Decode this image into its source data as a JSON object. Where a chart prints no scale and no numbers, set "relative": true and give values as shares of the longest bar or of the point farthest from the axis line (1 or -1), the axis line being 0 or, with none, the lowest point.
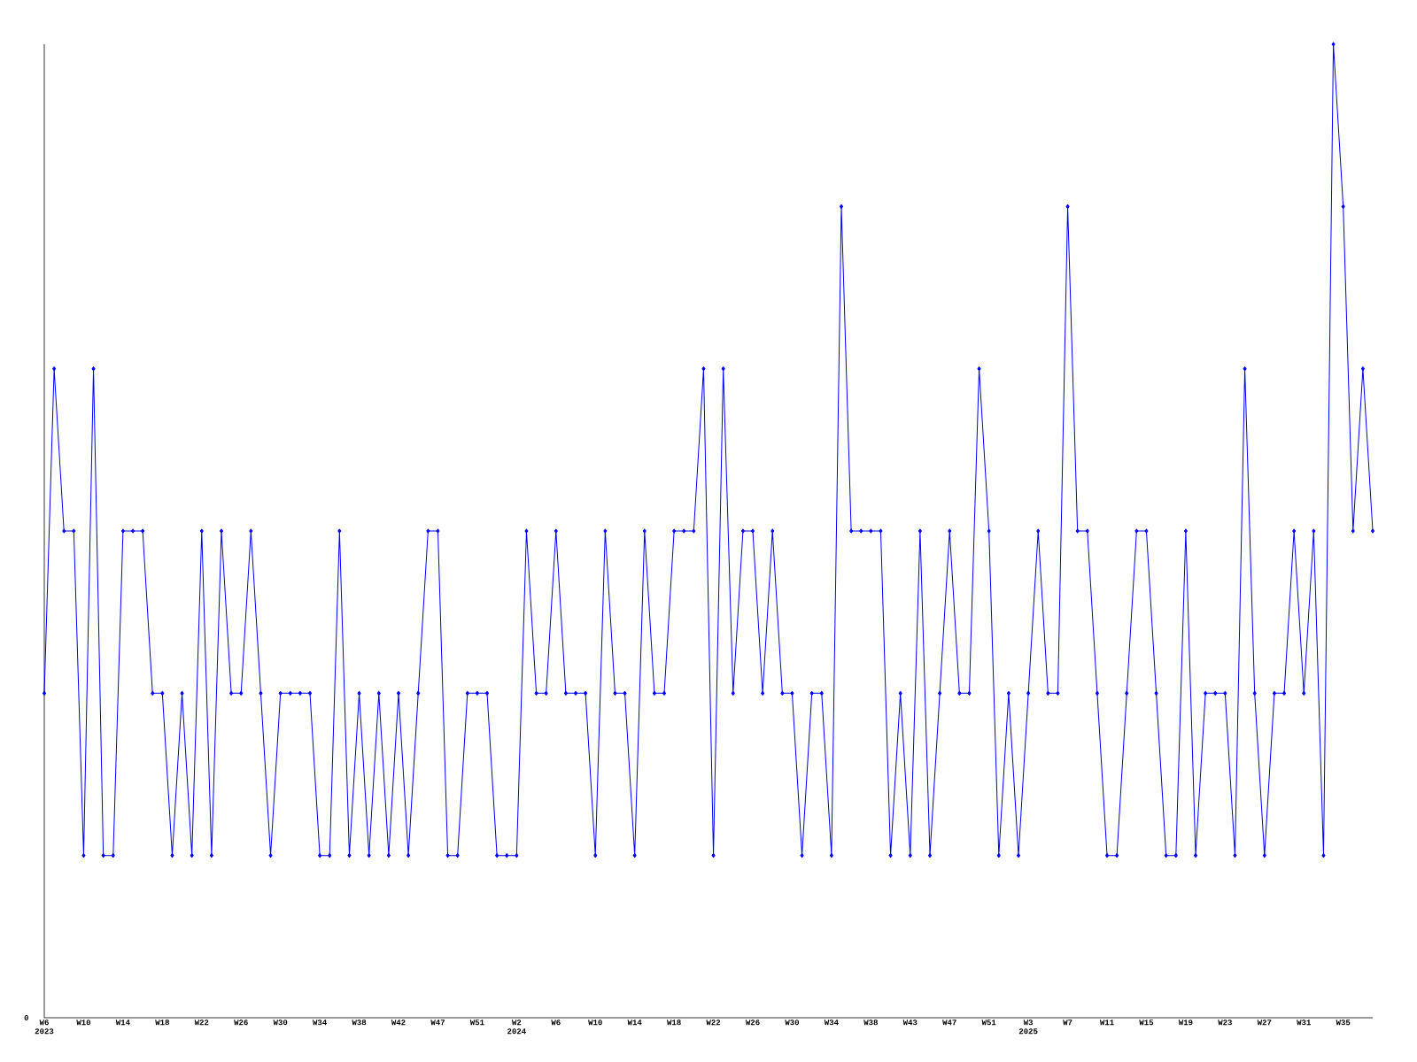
{
  "chart_data": {
    "type": "line",
    "relative": true,
    "color": "#0000ff",
    "marker": "diamond",
    "line_style": "solid",
    "grid": false,
    "annotations": [
      "0"
    ],
    "categories": [
      "W6 2023",
      null,
      null,
      null,
      "W10",
      null,
      null,
      null,
      "W14",
      null,
      null,
      null,
      "W18",
      null,
      null,
      null,
      "W22",
      null,
      null,
      null,
      "W26",
      null,
      null,
      null,
      "W30",
      null,
      null,
      null,
      "W34",
      null,
      null,
      null,
      "W38",
      null,
      null,
      null,
      "W42",
      null,
      null,
      null,
      "W47",
      null,
      null,
      null,
      "W51",
      null,
      null,
      null,
      "W2 2024",
      null,
      null,
      null,
      "W6",
      null,
      null,
      null,
      "W10",
      null,
      null,
      null,
      "W14",
      null,
      null,
      null,
      "W18",
      null,
      null,
      null,
      "W22",
      null,
      null,
      null,
      "W26",
      null,
      null,
      null,
      "W30",
      null,
      null,
      null,
      "W34",
      null,
      null,
      null,
      "W38",
      null,
      null,
      null,
      "W43",
      null,
      null,
      null,
      "W47",
      null,
      null,
      null,
      "W51",
      null,
      null,
      null,
      "W3 2025",
      null,
      null,
      null,
      "W7",
      null,
      null,
      null,
      "W11",
      null,
      null,
      null,
      "W15",
      null,
      null,
      null,
      "W19",
      null,
      null,
      null,
      "W23",
      null,
      null,
      null,
      "W27",
      null,
      null,
      null,
      "W31",
      null,
      null,
      null,
      "W35",
      null,
      null,
      null
    ],
    "values": [
      0.3333,
      0.6667,
      0.5,
      0.5,
      0.1667,
      0.6667,
      0.1667,
      0.1667,
      0.5,
      0.5,
      0.5,
      0.3333,
      0.3333,
      0.1667,
      0.3333,
      0.1667,
      0.5,
      0.1667,
      0.5,
      0.3333,
      0.3333,
      0.5,
      0.3333,
      0.1667,
      0.3333,
      0.3333,
      0.3333,
      0.3333,
      0.1667,
      0.1667,
      0.5,
      0.1667,
      0.3333,
      0.1667,
      0.3333,
      0.1667,
      0.3333,
      0.1667,
      0.3333,
      0.5,
      0.5,
      0.1667,
      0.1667,
      0.3333,
      0.3333,
      0.3333,
      0.1667,
      0.1667,
      0.1667,
      0.5,
      0.3333,
      0.3333,
      0.5,
      0.3333,
      0.3333,
      0.3333,
      0.1667,
      0.5,
      0.3333,
      0.3333,
      0.1667,
      0.5,
      0.3333,
      0.3333,
      0.5,
      0.5,
      0.5,
      0.6667,
      0.1667,
      0.6667,
      0.3333,
      0.5,
      0.5,
      0.3333,
      0.5,
      0.3333,
      0.3333,
      0.1667,
      0.3333,
      0.3333,
      0.1667,
      0.8333,
      0.5,
      0.5,
      0.5,
      0.5,
      0.1667,
      0.3333,
      0.1667,
      0.5,
      0.1667,
      0.3333,
      0.5,
      0.3333,
      0.3333,
      0.6667,
      0.5,
      0.1667,
      0.3333,
      0.1667,
      0.3333,
      0.5,
      0.3333,
      0.3333,
      0.8333,
      0.5,
      0.5,
      0.3333,
      0.1667,
      0.1667,
      0.3333,
      0.5,
      0.5,
      0.3333,
      0.1667,
      0.1667,
      0.5,
      0.1667,
      0.3333,
      0.3333,
      0.3333,
      0.1667,
      0.6667,
      0.3333,
      0.1667,
      0.3333,
      0.3333,
      0.5,
      0.3333,
      0.5,
      0.1667,
      1,
      0.8333,
      0.5,
      0.6667,
      0.5
    ]
  }
}
